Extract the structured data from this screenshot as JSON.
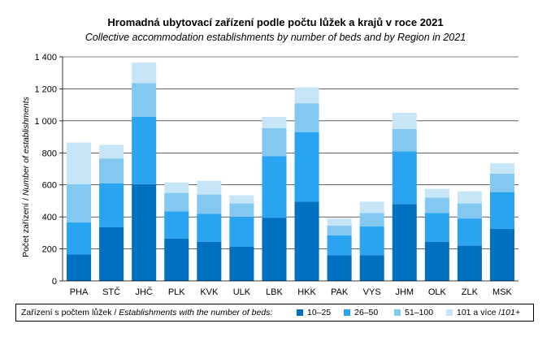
{
  "chart_data": {
    "type": "bar",
    "stacked": true,
    "title": "Hromadná ubytovací zařízení podle počtu lůžek a krajů v roce 2021",
    "subtitle": "Collective accommodation establishments by number of beds and by Region in 2021",
    "ylabel_cz": "Počet zařízení / ",
    "ylabel_en": "Number of establishments",
    "ylim": [
      0,
      1400
    ],
    "yticks": [
      0,
      200,
      400,
      600,
      800,
      1000,
      1200,
      1400
    ],
    "ytick_labels": [
      "0",
      "200",
      "400",
      "600",
      "800",
      "1 000",
      "1 200",
      "1 400"
    ],
    "categories": [
      "PHA",
      "STČ",
      "JHČ",
      "PLK",
      "KVK",
      "ULK",
      "LBK",
      "HKK",
      "PAK",
      "VYS",
      "JHM",
      "OLK",
      "ZLK",
      "MSK"
    ],
    "series": [
      {
        "name": "10–25",
        "color": "#0070c0",
        "values": [
          165,
          335,
          605,
          265,
          245,
          215,
          395,
          495,
          160,
          160,
          480,
          245,
          220,
          325
        ]
      },
      {
        "name": "26–50",
        "color": "#2aa3f0",
        "values": [
          200,
          275,
          420,
          170,
          175,
          185,
          385,
          435,
          125,
          180,
          330,
          180,
          170,
          230
        ]
      },
      {
        "name": "51–100",
        "color": "#82c8f0",
        "values": [
          240,
          155,
          210,
          115,
          120,
          85,
          175,
          180,
          60,
          85,
          140,
          95,
          95,
          115
        ]
      },
      {
        "name": "101 a více /101+",
        "color": "#c6e6f8",
        "values": [
          260,
          85,
          130,
          65,
          85,
          50,
          70,
          100,
          45,
          70,
          100,
          55,
          75,
          65
        ]
      }
    ]
  },
  "legend": {
    "desc_cz": "Zařízení s počtem lůžek / ",
    "desc_en": "Establishments with the number of beds:",
    "items": [
      {
        "label": "10–25",
        "color": "#0070c0"
      },
      {
        "label": "26–50",
        "color": "#2aa3f0"
      },
      {
        "label": "51–100",
        "color": "#82c8f0"
      },
      {
        "label_cz": "101 a více /",
        "label_en": "101+",
        "color": "#c6e6f8"
      }
    ]
  }
}
